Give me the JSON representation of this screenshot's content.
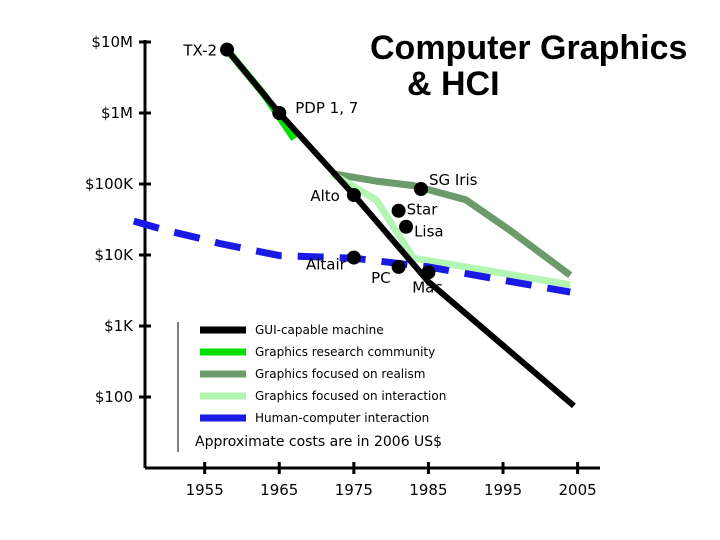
{
  "chart_data": {
    "type": "line",
    "title_line1": "Computer Graphics",
    "title_line2": "& HCI",
    "y_scale": "log",
    "yticks": [
      {
        "value": 10000000,
        "label": "$10M"
      },
      {
        "value": 1000000,
        "label": "$1M"
      },
      {
        "value": 100000,
        "label": "$100K"
      },
      {
        "value": 10000,
        "label": "$10K"
      },
      {
        "value": 1000,
        "label": "$1K"
      },
      {
        "value": 100,
        "label": "$100"
      }
    ],
    "xticks": [
      1955,
      1965,
      1975,
      1985,
      1995,
      2005
    ],
    "xlim": [
      1947,
      2008
    ],
    "series": [
      {
        "name": "GUI-capable machine",
        "color": "#000000",
        "dash": false,
        "points": [
          [
            1958,
            7800000
          ],
          [
            1965,
            1000000
          ],
          [
            1975,
            70000
          ],
          [
            1985,
            4200
          ],
          [
            2004.5,
            75
          ]
        ]
      },
      {
        "name": "Graphics research community",
        "color": "#00e000",
        "dash": false,
        "points": [
          [
            1958,
            7800000
          ],
          [
            1963,
            1800000
          ],
          [
            1967,
            430000
          ]
        ]
      },
      {
        "name": "Graphics focused on realism",
        "color": "#6b9a6b",
        "dash": false,
        "points": [
          [
            1972,
            140000
          ],
          [
            1978,
            110000
          ],
          [
            1983,
            95000
          ],
          [
            1990,
            60000
          ],
          [
            1996,
            22000
          ],
          [
            2004,
            5200
          ]
        ]
      },
      {
        "name": "Graphics focused on interaction",
        "color": "#b3f5b3",
        "dash": false,
        "points": [
          [
            1972,
            140000
          ],
          [
            1978,
            60000
          ],
          [
            1983,
            9000
          ],
          [
            1990,
            6800
          ],
          [
            2004,
            3800
          ]
        ]
      },
      {
        "name": "Human-computer interaction",
        "color": "#1a1ae6",
        "dash": true,
        "points": [
          [
            1945.5,
            30000
          ],
          [
            1950,
            22000
          ],
          [
            1954,
            17500
          ],
          [
            1957,
            14500
          ],
          [
            1965,
            9800
          ],
          [
            1975,
            9000
          ],
          [
            1985,
            6800
          ],
          [
            2004,
            3000
          ]
        ]
      }
    ],
    "markers": [
      {
        "label": "TX-2",
        "x": 1958,
        "y": 7800000
      },
      {
        "label": "PDP 1, 7",
        "x": 1965,
        "y": 1000000
      },
      {
        "label": "Alto",
        "x": 1975,
        "y": 70000
      },
      {
        "label": "Altair",
        "x": 1975,
        "y": 9200
      },
      {
        "label": "PC",
        "x": 1981,
        "y": 6800
      },
      {
        "label": "Mac",
        "x": 1985,
        "y": 5700
      },
      {
        "label": "SG Iris",
        "x": 1984,
        "y": 85000
      },
      {
        "label": "Star",
        "x": 1981,
        "y": 42000
      },
      {
        "label": "Lisa",
        "x": 1982,
        "y": 25000
      }
    ],
    "legend": {
      "position": "lower-center",
      "entries": [
        "GUI-capable machine",
        "Graphics research community",
        "Graphics focused on realism",
        "Graphics focused on interaction",
        "Human-computer interaction"
      ],
      "colors": [
        "#000000",
        "#00e000",
        "#6b9a6b",
        "#b3f5b3",
        "#1a1ae6"
      ]
    },
    "note": "Approximate costs are in 2006 US$"
  }
}
